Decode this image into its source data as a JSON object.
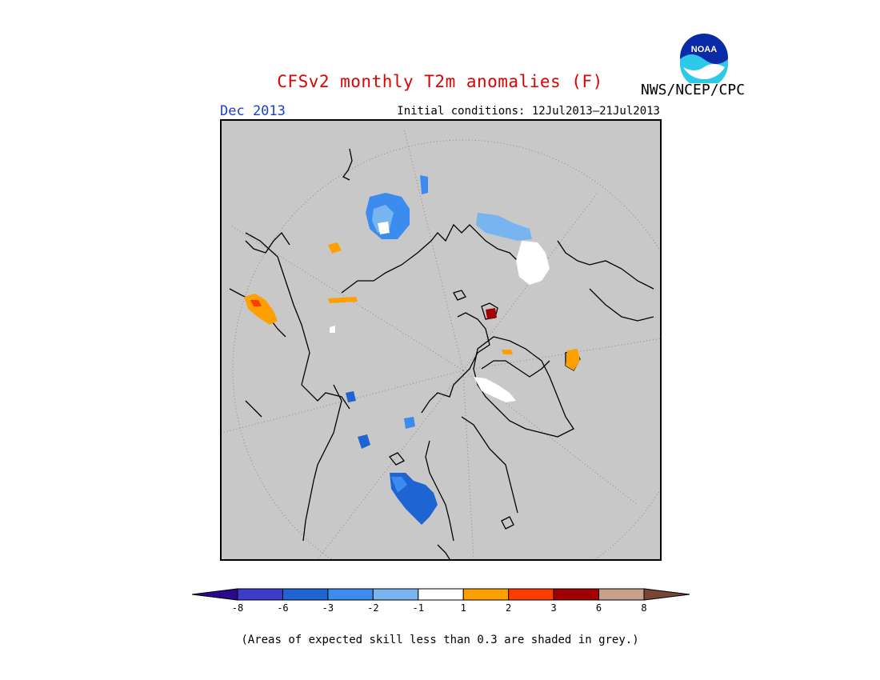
{
  "header": {
    "title": "CFSv2 monthly T2m anomalies (F)",
    "agency": "NWS/NCEP/CPC",
    "period": "Dec 2013",
    "initial_conditions": "Initial conditions: 12Jul2013–21Jul2013",
    "logo_text": "NOAA"
  },
  "map": {
    "projection": "north polar stereographic",
    "background_color": "#c8c8c8"
  },
  "legend": {
    "ticks": [
      "-8",
      "-6",
      "-3",
      "-2",
      "-1",
      "1",
      "2",
      "3",
      "6",
      "8"
    ],
    "bins": [
      {
        "color": "#2a0a8c"
      },
      {
        "color": "#3c3cc8"
      },
      {
        "color": "#1e64d2"
      },
      {
        "color": "#3c8cf0"
      },
      {
        "color": "#78b4f0"
      },
      {
        "color": "#ffffff"
      },
      {
        "color": "#ffa000"
      },
      {
        "color": "#ff3c00"
      },
      {
        "color": "#a00000"
      },
      {
        "color": "#c8a08c"
      },
      {
        "color": "#784632"
      }
    ]
  },
  "footnote": "(Areas of expected skill less than 0.3 are shaded in grey.)"
}
